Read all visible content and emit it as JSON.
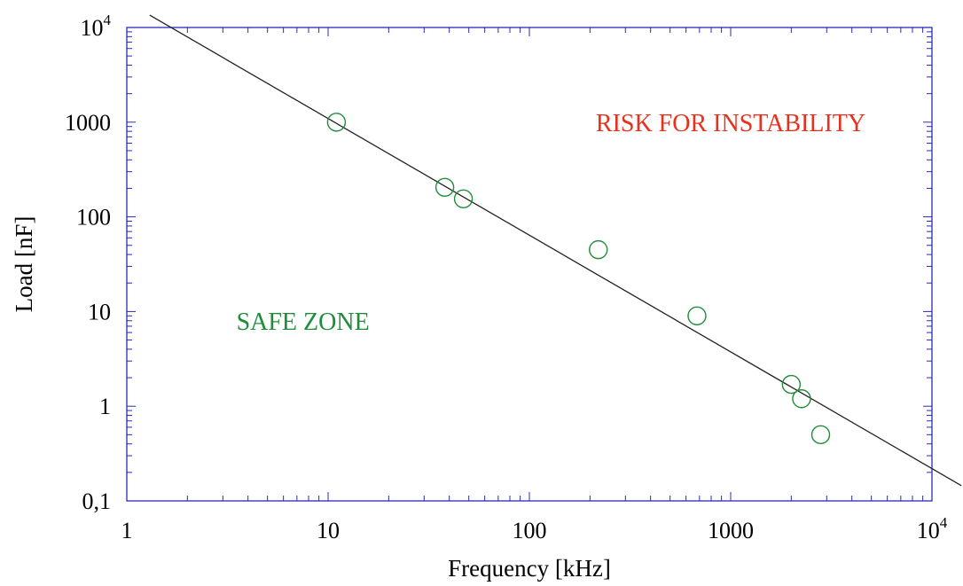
{
  "chart_data": {
    "type": "scatter",
    "xlabel": "Frequency  [kHz]",
    "ylabel": "Load [nF]",
    "xscale": "log",
    "yscale": "log",
    "xlim": [
      1,
      10000
    ],
    "ylim": [
      0.1,
      10000
    ],
    "x_ticks": [
      {
        "value": 1,
        "label": "1"
      },
      {
        "value": 10,
        "label": "10"
      },
      {
        "value": 100,
        "label": "100"
      },
      {
        "value": 1000,
        "label": "1000"
      },
      {
        "value": 10000,
        "label": "10",
        "exp": "4"
      }
    ],
    "y_ticks": [
      {
        "value": 0.1,
        "label": "0,1"
      },
      {
        "value": 1,
        "label": "1"
      },
      {
        "value": 10,
        "label": "10"
      },
      {
        "value": 100,
        "label": "100"
      },
      {
        "value": 1000,
        "label": "1000"
      },
      {
        "value": 10000,
        "label": "10",
        "exp": "4"
      }
    ],
    "series": [
      {
        "marker": "open-circle",
        "points": [
          {
            "x": 11,
            "y": 1000
          },
          {
            "x": 38,
            "y": 205
          },
          {
            "x": 47,
            "y": 155
          },
          {
            "x": 220,
            "y": 45
          },
          {
            "x": 680,
            "y": 9
          },
          {
            "x": 2000,
            "y": 1.7
          },
          {
            "x": 2250,
            "y": 1.2
          },
          {
            "x": 2800,
            "y": 0.5
          }
        ]
      }
    ],
    "fit_line": {
      "x": [
        1.3,
        14000
      ],
      "y": [
        13500,
        0.145
      ]
    },
    "annotations": [
      {
        "text": "RISK FOR INSTABILITY",
        "color": "#e8301e",
        "x": 1000,
        "y": 1000
      },
      {
        "text": "SAFE ZONE",
        "color": "#1e8c3a",
        "x": 7.5,
        "y": 8
      }
    ],
    "colors": {
      "axes": "#2b2bb5",
      "marker": "#1e8c3a",
      "fit_line": "#222222"
    },
    "grid": false
  }
}
